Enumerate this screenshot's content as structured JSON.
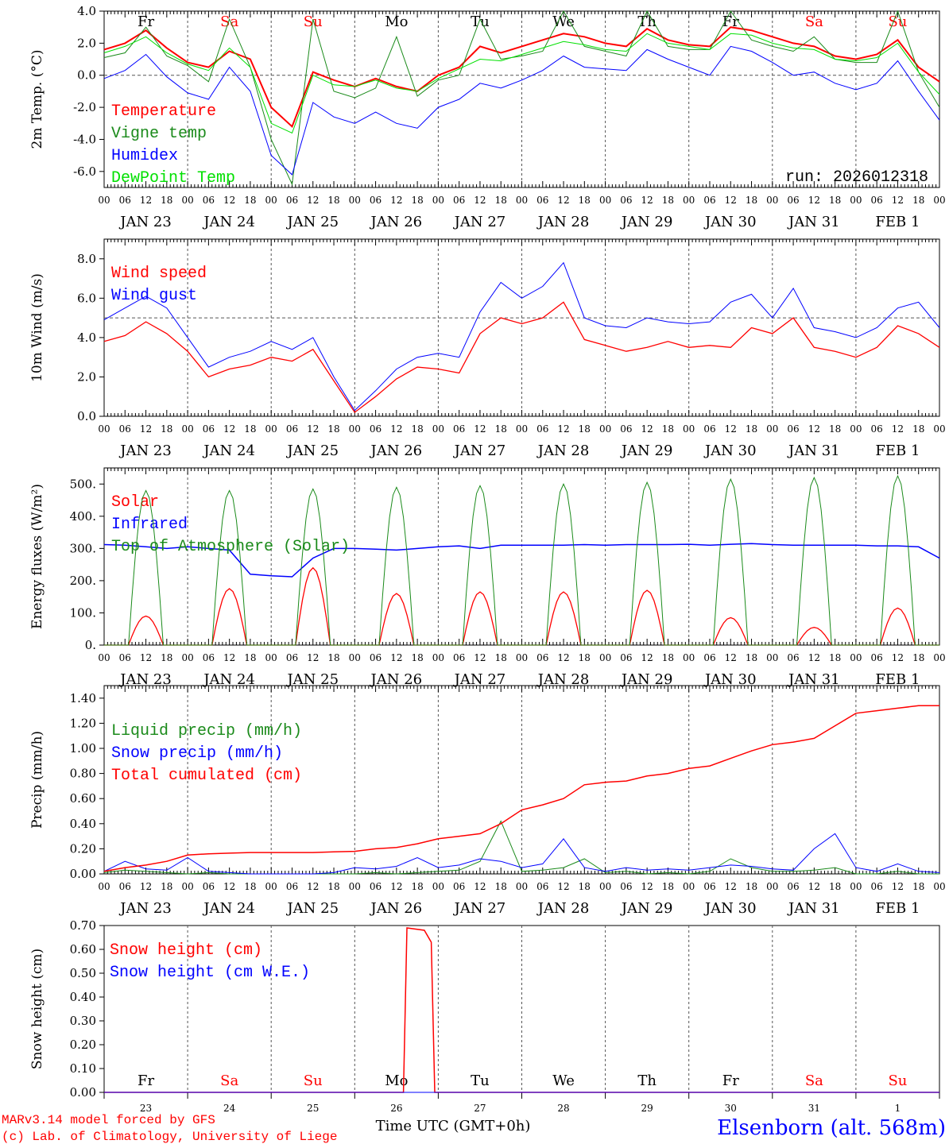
{
  "colors": {
    "red": "#ff0000",
    "green": "#1a8a1a",
    "blue": "#0000ff",
    "lime": "#00e000"
  },
  "day_names": [
    {
      "l": "Fr",
      "c": "black"
    },
    {
      "l": "Sa",
      "c": "red"
    },
    {
      "l": "Su",
      "c": "red"
    },
    {
      "l": "Mo",
      "c": "black"
    },
    {
      "l": "Tu",
      "c": "black"
    },
    {
      "l": "We",
      "c": "black"
    },
    {
      "l": "Th",
      "c": "black"
    },
    {
      "l": "Fr",
      "c": "black"
    },
    {
      "l": "Sa",
      "c": "red"
    },
    {
      "l": "Su",
      "c": "red"
    }
  ],
  "dates": [
    "JAN 23",
    "JAN 24",
    "JAN 25",
    "JAN 26",
    "JAN 27",
    "JAN 28",
    "JAN 29",
    "JAN 30",
    "JAN 31",
    "FEB  1"
  ],
  "date_numbers": [
    "23",
    "24",
    "25",
    "26",
    "27",
    "28",
    "29",
    "30",
    "31",
    "1"
  ],
  "hour_labels": [
    "00",
    "06",
    "12",
    "18"
  ],
  "run_label": "run: 2026012318",
  "footer": {
    "model": "MARv3.14 model forced by GFS",
    "credit": "(c) Lab. of Climatology, University of Liege",
    "xlabel": "Time UTC (GMT+0h)",
    "station": "Elsenborn (alt. 568m)"
  },
  "chart_data": [
    {
      "type": "line",
      "ylabel": "2m Temp. (°C)",
      "ylim": [
        -7,
        4
      ],
      "ref_line": 0,
      "step_hours": 6,
      "yticks": [
        {
          "v": 4,
          "l": "4.0"
        },
        {
          "v": 2,
          "l": "2.0"
        },
        {
          "v": 0,
          "l": "0.0"
        },
        {
          "v": -2,
          "l": "-2.0"
        },
        {
          "v": -4,
          "l": "-4.0"
        },
        {
          "v": -6,
          "l": "-6.0"
        }
      ],
      "series": [
        {
          "name": "Temperature",
          "color": "red",
          "width": 2,
          "values": [
            1.6,
            2.0,
            2.8,
            1.7,
            0.8,
            0.5,
            1.5,
            1.0,
            -2.0,
            -3.2,
            0.2,
            -0.3,
            -0.7,
            -0.2,
            -0.7,
            -1.0,
            0.0,
            0.5,
            1.8,
            1.4,
            1.8,
            2.2,
            2.6,
            2.4,
            2.0,
            1.8,
            2.9,
            2.2,
            1.9,
            1.8,
            3.0,
            2.8,
            2.4,
            2.0,
            1.8,
            1.2,
            1.0,
            1.3,
            2.2,
            0.5,
            -0.4
          ]
        },
        {
          "name": "Vigne temp",
          "color": "green",
          "width": 1,
          "values": [
            1.1,
            1.4,
            3.0,
            1.2,
            0.6,
            -0.4,
            3.5,
            0.5,
            -4.0,
            -6.8,
            3.5,
            -1.0,
            -1.4,
            -0.8,
            2.4,
            -1.3,
            -0.3,
            0.0,
            3.5,
            1.0,
            1.2,
            1.5,
            4.0,
            1.8,
            1.5,
            1.2,
            4.0,
            1.8,
            1.6,
            1.6,
            4.0,
            2.2,
            1.8,
            1.5,
            2.4,
            1.0,
            0.8,
            0.8,
            4.0,
            0.2,
            -2.0
          ]
        },
        {
          "name": "Humidex",
          "color": "blue",
          "width": 1,
          "values": [
            -0.2,
            0.3,
            1.3,
            -0.1,
            -1.1,
            -1.5,
            0.5,
            -1.0,
            -5.0,
            -6.2,
            -1.7,
            -2.6,
            -3.0,
            -2.3,
            -3.0,
            -3.3,
            -2.0,
            -1.5,
            -0.5,
            -0.8,
            -0.3,
            0.3,
            1.2,
            0.5,
            0.4,
            0.3,
            1.6,
            1.0,
            0.5,
            0.0,
            1.8,
            1.5,
            0.8,
            0.0,
            0.2,
            -0.5,
            -0.9,
            -0.5,
            0.9,
            -1.0,
            -2.8
          ]
        },
        {
          "name": "DewPoint Temp",
          "color": "lime",
          "width": 1,
          "values": [
            1.4,
            1.8,
            2.4,
            1.4,
            0.7,
            0.3,
            1.7,
            0.5,
            -3.0,
            -3.6,
            0.0,
            -0.6,
            -0.7,
            -0.3,
            -0.8,
            -1.0,
            -0.2,
            0.4,
            1.0,
            0.9,
            1.3,
            1.7,
            2.1,
            1.9,
            1.6,
            1.5,
            2.6,
            2.0,
            1.8,
            1.6,
            2.6,
            2.5,
            2.0,
            1.7,
            1.6,
            1.0,
            0.9,
            1.1,
            2.0,
            0.2,
            -1.2
          ]
        }
      ]
    },
    {
      "type": "line",
      "ylabel": "10m Wind (m/s)",
      "ylim": [
        0,
        9
      ],
      "ref_line": 5,
      "step_hours": 6,
      "yticks": [
        {
          "v": 8,
          "l": "8.0"
        },
        {
          "v": 6,
          "l": "6.0"
        },
        {
          "v": 4,
          "l": "4.0"
        },
        {
          "v": 2,
          "l": "2.0"
        },
        {
          "v": 0,
          "l": "0.0"
        }
      ],
      "series": [
        {
          "name": "Wind speed",
          "color": "red",
          "width": 1.3,
          "values": [
            3.8,
            4.1,
            4.8,
            4.2,
            3.3,
            2.0,
            2.4,
            2.6,
            3.0,
            2.8,
            3.4,
            1.8,
            0.2,
            1.0,
            1.9,
            2.5,
            2.4,
            2.2,
            4.2,
            5.0,
            4.7,
            5.0,
            5.8,
            3.9,
            3.6,
            3.3,
            3.5,
            3.8,
            3.5,
            3.6,
            3.5,
            4.5,
            4.2,
            5.0,
            3.5,
            3.3,
            3.0,
            3.5,
            4.6,
            4.2,
            3.5
          ]
        },
        {
          "name": "Wind gust",
          "color": "blue",
          "width": 1,
          "values": [
            4.9,
            5.5,
            6.1,
            5.5,
            4.0,
            2.5,
            3.0,
            3.3,
            3.8,
            3.4,
            4.0,
            2.0,
            0.3,
            1.3,
            2.4,
            3.0,
            3.2,
            3.0,
            5.3,
            6.8,
            6.0,
            6.6,
            7.8,
            5.0,
            4.6,
            4.5,
            5.0,
            4.8,
            4.7,
            4.8,
            5.8,
            6.2,
            5.0,
            6.5,
            4.5,
            4.3,
            4.0,
            4.5,
            5.5,
            5.8,
            4.5
          ]
        }
      ]
    },
    {
      "type": "line",
      "ylabel": "Energy fluxes (W/m²)",
      "ylim": [
        0,
        550
      ],
      "yticks": [
        {
          "v": 500,
          "l": "500."
        },
        {
          "v": 400,
          "l": "400."
        },
        {
          "v": 300,
          "l": "300."
        },
        {
          "v": 200,
          "l": "200."
        },
        {
          "v": 100,
          "l": "100."
        },
        {
          "v": 0,
          "l": "0."
        }
      ],
      "series": [
        {
          "name": "Solar",
          "color": "red",
          "width": 1.3,
          "daily_peaks": [
            90,
            175,
            240,
            160,
            165,
            165,
            170,
            85,
            55,
            115
          ]
        },
        {
          "name": "Infrared",
          "color": "blue",
          "width": 1.5,
          "step_hours": 6,
          "values": [
            312,
            310,
            305,
            300,
            305,
            300,
            295,
            220,
            215,
            212,
            270,
            300,
            300,
            298,
            295,
            300,
            305,
            308,
            300,
            310,
            310,
            310,
            310,
            312,
            310,
            312,
            312,
            312,
            313,
            310,
            313,
            315,
            312,
            310,
            310,
            310,
            310,
            308,
            308,
            305,
            270
          ]
        },
        {
          "name": "Top of Atmosphere (Solar)",
          "color": "green",
          "width": 1,
          "daily_peaks": [
            480,
            480,
            485,
            490,
            495,
            500,
            505,
            515,
            520,
            525
          ]
        }
      ]
    },
    {
      "type": "line",
      "ylabel": "Precip (mm/h)",
      "ylim": [
        0,
        1.5
      ],
      "step_hours": 6,
      "yticks": [
        {
          "v": 1.4,
          "l": "1.40"
        },
        {
          "v": 1.2,
          "l": "1.20"
        },
        {
          "v": 1.0,
          "l": "1.00"
        },
        {
          "v": 0.8,
          "l": "0.80"
        },
        {
          "v": 0.6,
          "l": "0.60"
        },
        {
          "v": 0.4,
          "l": "0.40"
        },
        {
          "v": 0.2,
          "l": "0.20"
        },
        {
          "v": 0,
          "l": "0.00"
        }
      ],
      "series": [
        {
          "name": "Liquid precip (mm/h)",
          "color": "green",
          "width": 1,
          "values": [
            0.01,
            0.03,
            0.02,
            0.01,
            0.0,
            0.01,
            0.0,
            0.0,
            0.0,
            0.0,
            0.0,
            0.0,
            0.0,
            0.01,
            0.0,
            0.01,
            0.02,
            0.03,
            0.1,
            0.42,
            0.02,
            0.03,
            0.05,
            0.12,
            0.01,
            0.02,
            0.0,
            0.01,
            0.0,
            0.02,
            0.12,
            0.05,
            0.02,
            0.02,
            0.03,
            0.05,
            0.0,
            0.0,
            0.02,
            0.0,
            0.0
          ]
        },
        {
          "name": "Snow precip (mm/h)",
          "color": "blue",
          "width": 1,
          "values": [
            0.02,
            0.1,
            0.04,
            0.03,
            0.13,
            0.02,
            0.01,
            0.0,
            0.0,
            0.0,
            0.0,
            0.01,
            0.05,
            0.04,
            0.06,
            0.13,
            0.05,
            0.07,
            0.12,
            0.1,
            0.05,
            0.08,
            0.28,
            0.05,
            0.02,
            0.05,
            0.03,
            0.04,
            0.03,
            0.05,
            0.07,
            0.06,
            0.04,
            0.03,
            0.2,
            0.32,
            0.05,
            0.02,
            0.08,
            0.02,
            0.01
          ]
        },
        {
          "name": "Total cumulated (cm)",
          "color": "red",
          "width": 1.5,
          "values": [
            0.02,
            0.05,
            0.07,
            0.1,
            0.15,
            0.16,
            0.165,
            0.17,
            0.17,
            0.17,
            0.17,
            0.175,
            0.18,
            0.2,
            0.21,
            0.24,
            0.28,
            0.3,
            0.32,
            0.4,
            0.51,
            0.55,
            0.6,
            0.71,
            0.73,
            0.74,
            0.78,
            0.8,
            0.84,
            0.86,
            0.92,
            0.98,
            1.03,
            1.05,
            1.08,
            1.18,
            1.28,
            1.3,
            1.32,
            1.34,
            1.34
          ]
        }
      ]
    },
    {
      "type": "line",
      "ylabel": "Snow height (cm)",
      "ylim": [
        0,
        0.7
      ],
      "yticks": [
        {
          "v": 0.7,
          "l": "0.70"
        },
        {
          "v": 0.6,
          "l": "0.60"
        },
        {
          "v": 0.5,
          "l": "0.50"
        },
        {
          "v": 0.4,
          "l": "0.40"
        },
        {
          "v": 0.3,
          "l": "0.30"
        },
        {
          "v": 0.2,
          "l": "0.20"
        },
        {
          "v": 0.1,
          "l": "0.10"
        },
        {
          "v": 0,
          "l": "0.00"
        }
      ],
      "series": [
        {
          "name": "Snow height (cm)",
          "color": "red",
          "width": 1.5,
          "points": [
            [
              0,
              0
            ],
            [
              86,
              0
            ],
            [
              87,
              0.69
            ],
            [
              92,
              0.68
            ],
            [
              94,
              0.63
            ],
            [
              95,
              0
            ],
            [
              240,
              0
            ]
          ]
        },
        {
          "name": "Snow height (cm W.E.)",
          "color": "blue",
          "width": 1,
          "points": [
            [
              0,
              0
            ],
            [
              240,
              0
            ]
          ]
        }
      ]
    }
  ]
}
